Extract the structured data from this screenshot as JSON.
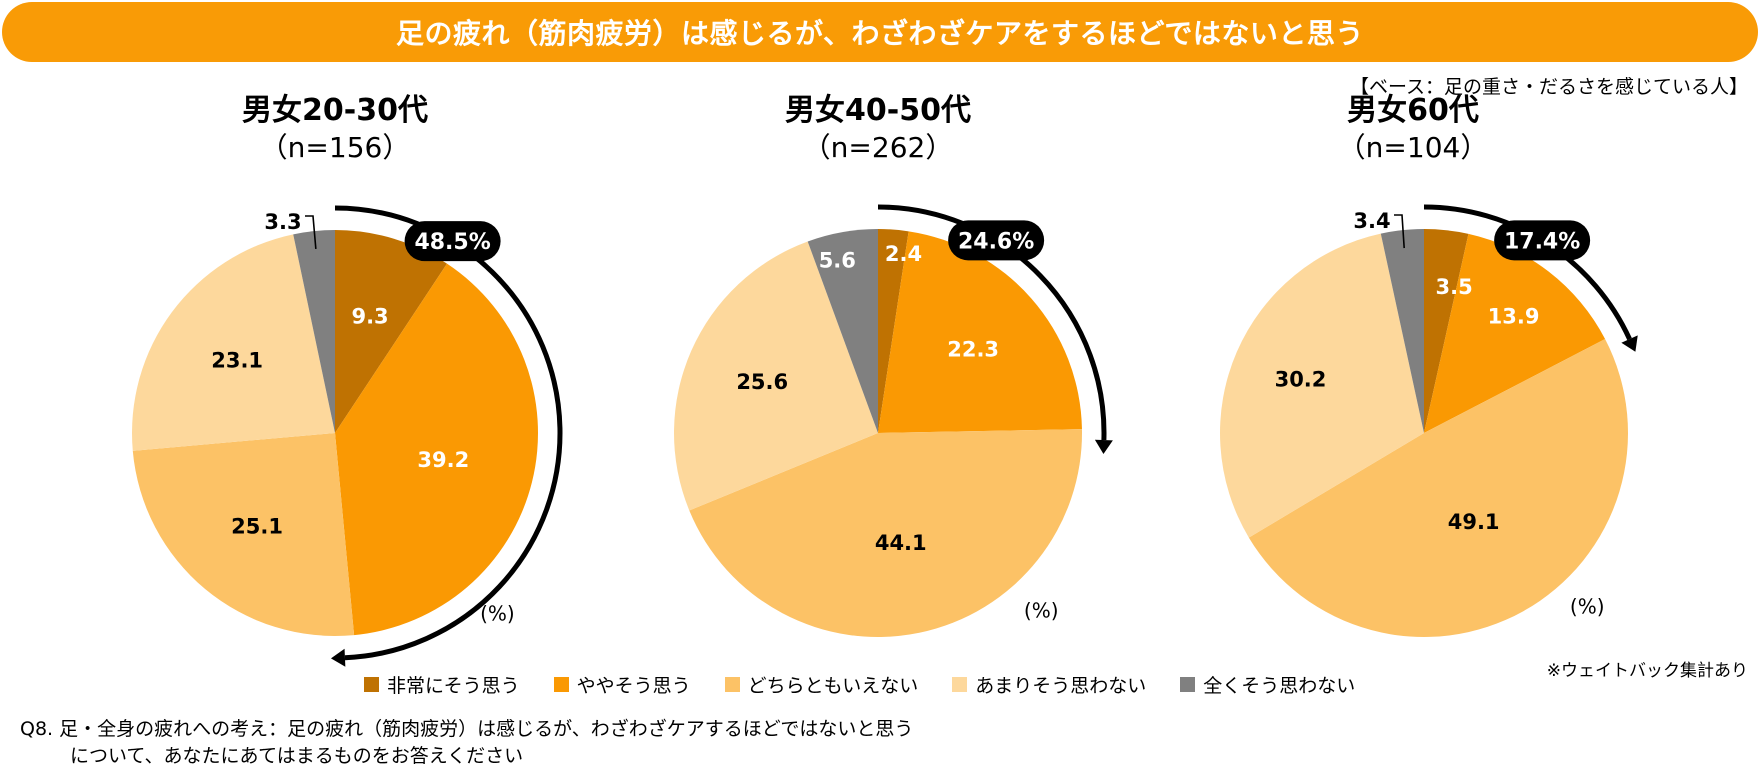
{
  "banner": {
    "title": "足の疲れ（筋肉疲労）は感じるが、わざわざケアをするほどではないと思う"
  },
  "base_note": "【ベース：足の重さ・だるさを感じている人】",
  "weight_note": "※ウェイトバック集計あり",
  "question": {
    "line1": "Q8. 足・全身の疲れへの考え：足の疲れ（筋肉疲労）は感じるが、わざわざケアするほどではないと思う",
    "line2": "について、あなたにあてはまるものをお答えください"
  },
  "colors": {
    "banner": "#F99B06",
    "very": "#BF7202",
    "somewhat": "#FA9903",
    "neutral": "#FCC266",
    "notmuch": "#FDD89C",
    "notatall": "#808080"
  },
  "chart_data": [
    {
      "type": "pie",
      "title": "男女20-30代",
      "subtitle": "（n=156）",
      "unit_label": "(%)",
      "categories": [
        "非常にそう思う",
        "ややそう思う",
        "どちらともいえない",
        "あまりそう思わない",
        "全くそう思わない"
      ],
      "values": [
        9.3,
        39.2,
        25.1,
        23.1,
        3.3
      ],
      "labels": [
        "9.3",
        "39.2",
        "25.1",
        "23.1",
        "3.3"
      ],
      "highlight_total": "48.5%",
      "start": "12 o'clock",
      "direction": "clockwise"
    },
    {
      "type": "pie",
      "title": "男女40-50代",
      "subtitle": "（n=262）",
      "unit_label": "(%)",
      "categories": [
        "非常にそう思う",
        "ややそう思う",
        "どちらともいえない",
        "あまりそう思わない",
        "全くそう思わない"
      ],
      "values": [
        2.4,
        22.3,
        44.1,
        25.6,
        5.6
      ],
      "labels": [
        "2.4",
        "22.3",
        "44.1",
        "25.6",
        "5.6"
      ],
      "highlight_total": "24.6%",
      "start": "12 o'clock",
      "direction": "clockwise"
    },
    {
      "type": "pie",
      "title": "男女60代",
      "subtitle": "（n=104）",
      "unit_label": "(%)",
      "categories": [
        "非常にそう思う",
        "ややそう思う",
        "どちらともいえない",
        "あまりそう思わない",
        "全くそう思わない"
      ],
      "values": [
        3.5,
        13.9,
        49.1,
        30.2,
        3.4
      ],
      "labels": [
        "3.5",
        "13.9",
        "49.1",
        "30.2",
        "3.4"
      ],
      "highlight_total": "17.4%",
      "start": "12 o'clock",
      "direction": "clockwise"
    }
  ],
  "legend": [
    {
      "label": "非常にそう思う",
      "color_key": "very"
    },
    {
      "label": "ややそう思う",
      "color_key": "somewhat"
    },
    {
      "label": "どちらともいえない",
      "color_key": "neutral"
    },
    {
      "label": "あまりそう思わない",
      "color_key": "notmuch"
    },
    {
      "label": "全くそう思わない",
      "color_key": "notatall"
    }
  ]
}
